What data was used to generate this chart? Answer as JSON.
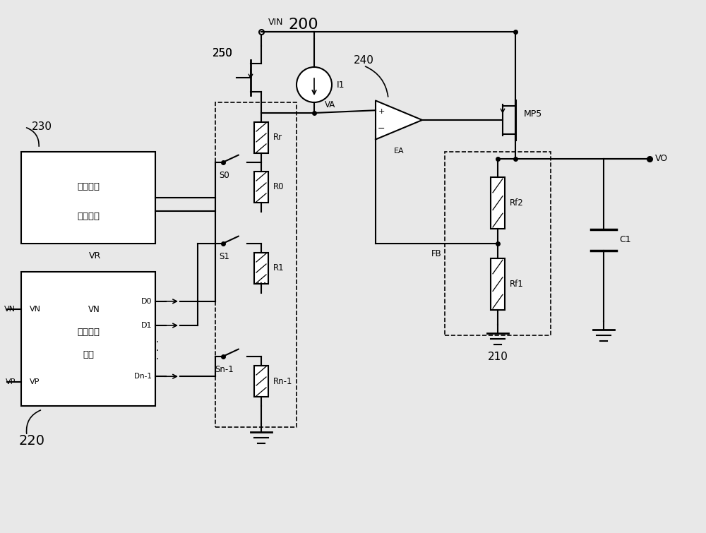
{
  "title": "200",
  "bg_color": "#e8e8e8",
  "line_color": "#000000",
  "dashed_color": "#000000",
  "text_color": "#000000",
  "labels": {
    "title": "200",
    "VIN": "VIN",
    "VO": "VO",
    "VR": "VR",
    "VN": "VN",
    "VP": "VP",
    "D0": "D0",
    "D1": "D1",
    "Dn1": "Dn-1",
    "I1": "I1",
    "VA": "VA",
    "FB": "FB",
    "EA": "EA",
    "MP5": "MP5",
    "C1": "C1",
    "Rr": "Rr",
    "R0": "R0",
    "R1": "R1",
    "Rn1": "Rn-1",
    "Rf2": "Rf2",
    "Rf1": "Rf1",
    "S0": "S0",
    "S1": "S1",
    "Sn1": "Sn-1",
    "num230": "230",
    "num250": "250",
    "num240": "240",
    "num220": "220",
    "num210": "210",
    "box230_text1": "基准电压",
    "box230_text2": "产生电路",
    "box220_text1": "失调校准",
    "box220_text2": "电路"
  }
}
